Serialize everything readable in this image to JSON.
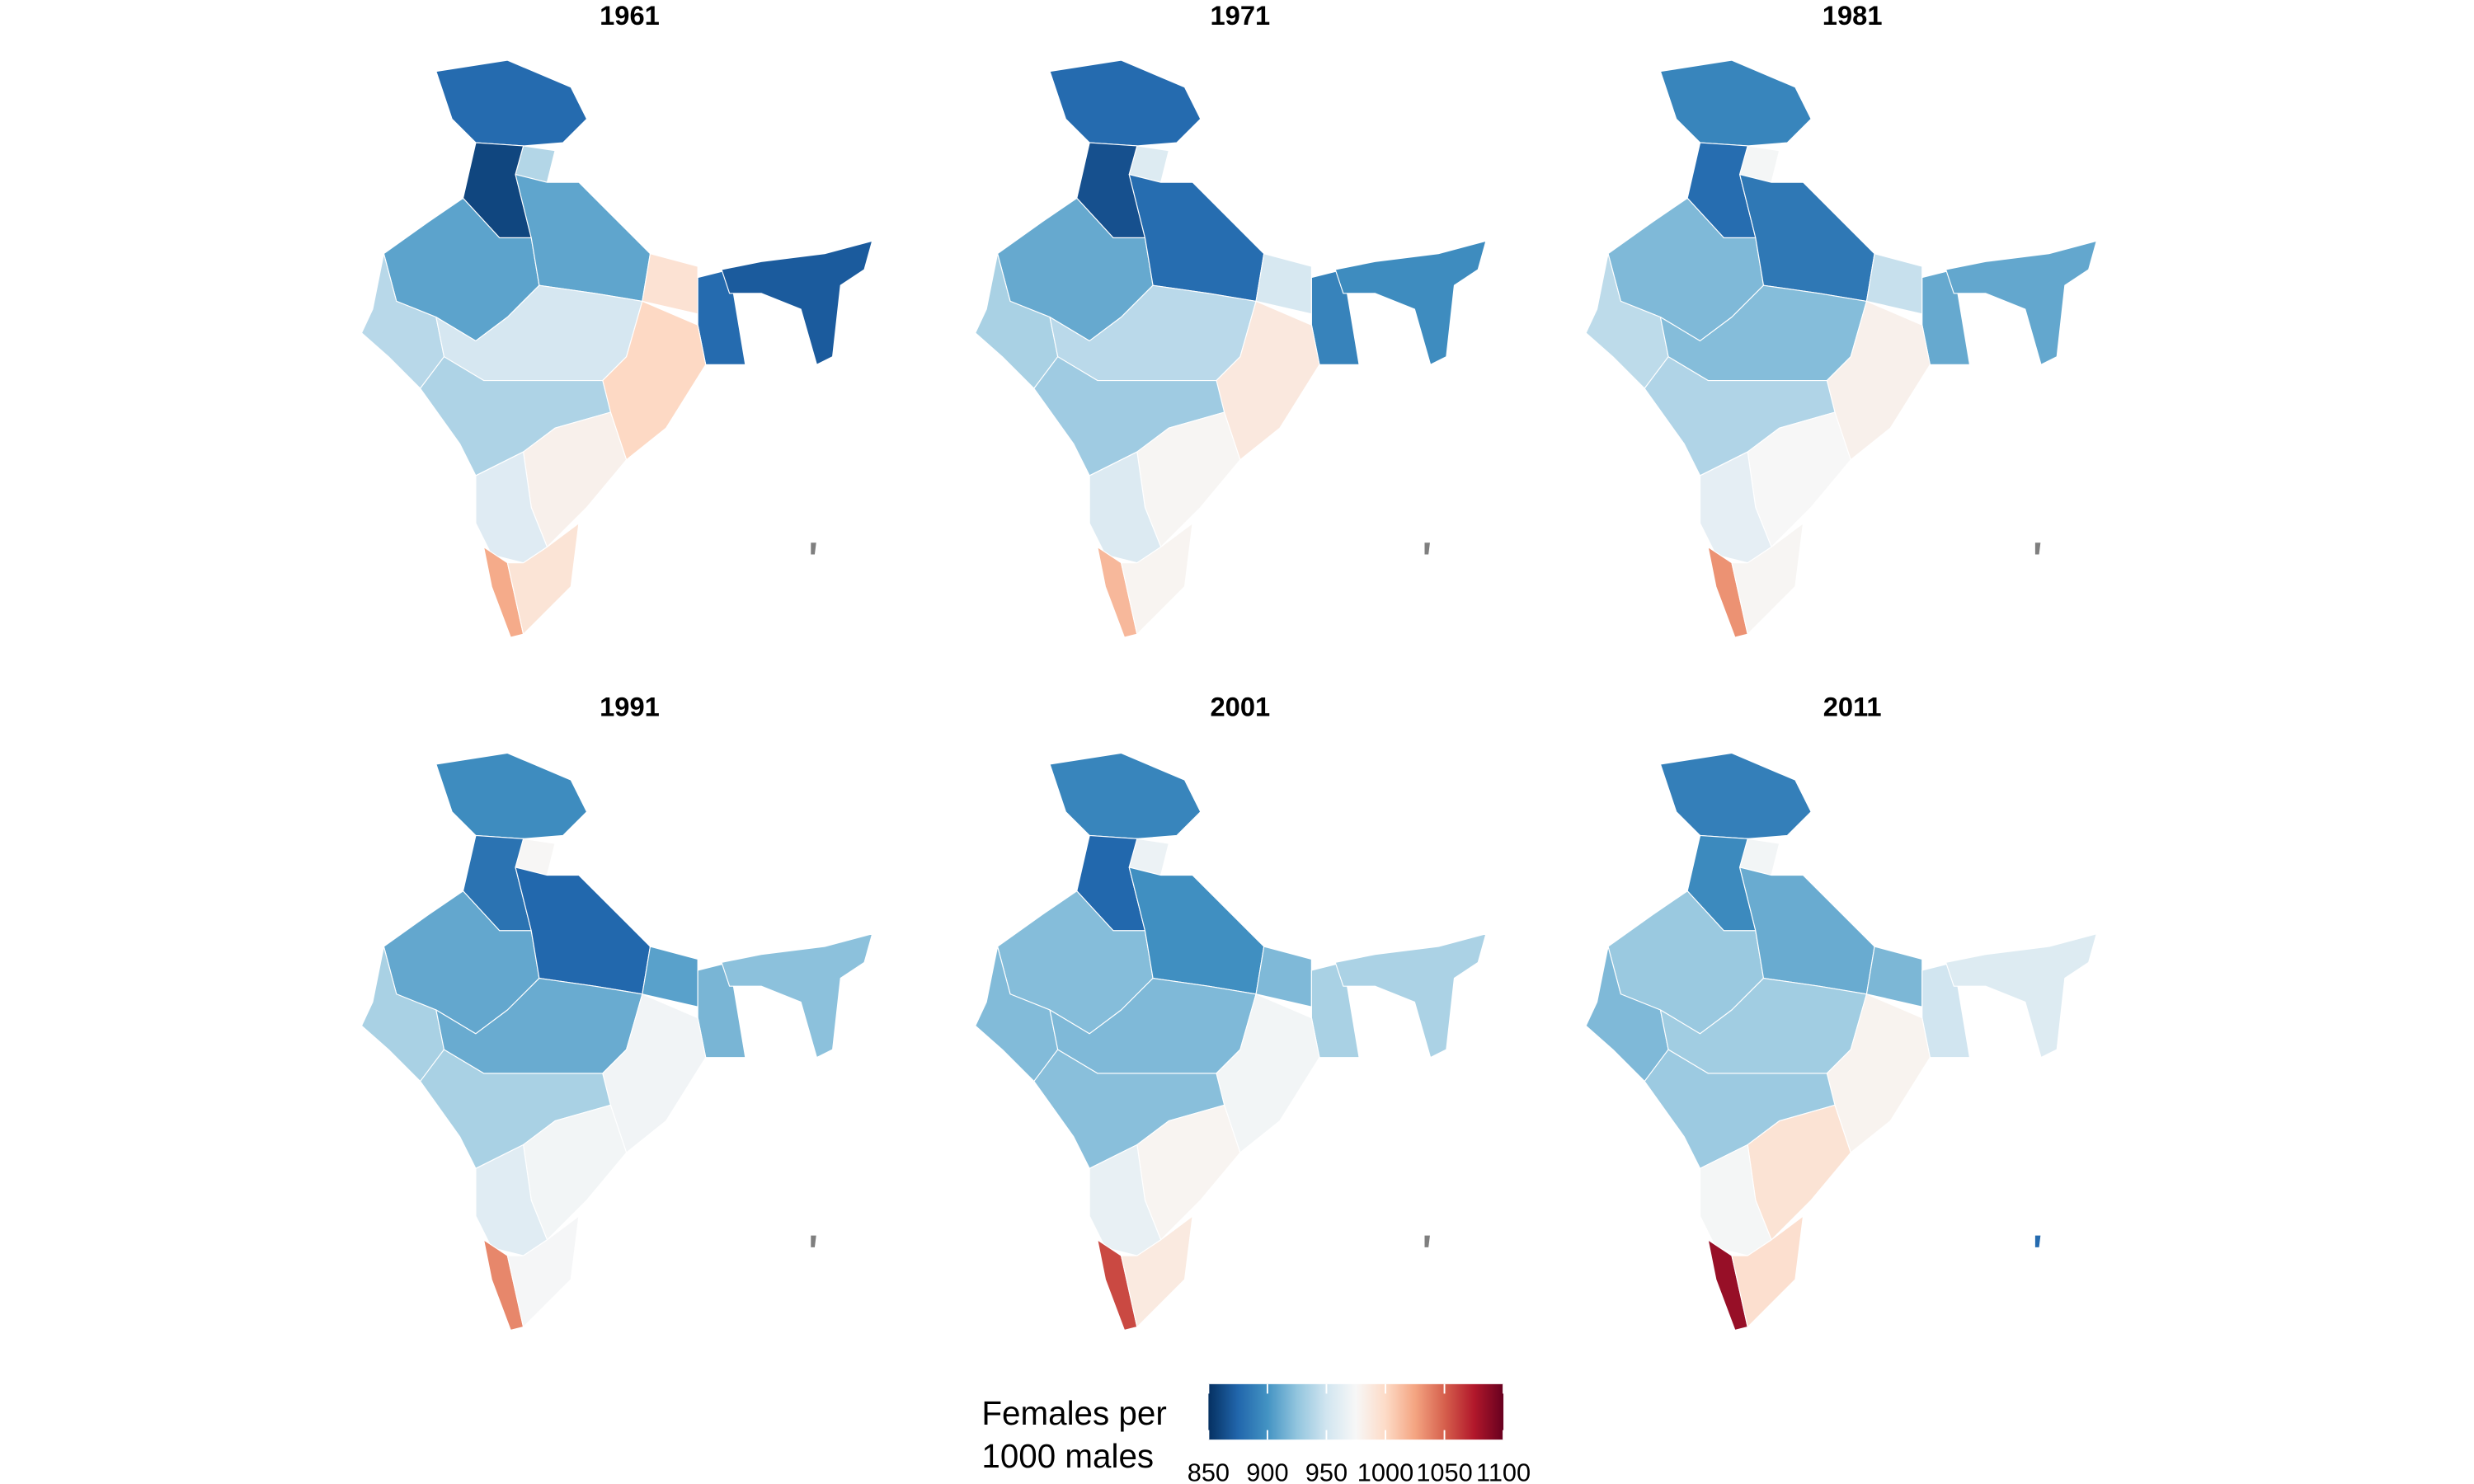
{
  "chart_data": {
    "type": "choropleth",
    "panels": [
      {
        "title": "1961",
        "values": [
          878,
          938,
          860,
          908,
          909,
          994,
          878,
          870,
          940,
          953,
          1001,
          936,
          981,
          959,
          1022,
          992,
          null
        ]
      },
      {
        "title": "1971",
        "values": [
          878,
          958,
          865,
          911,
          879,
          954,
          891,
          896,
          934,
          941,
          988,
          930,
          977,
          957,
          1016,
          978,
          null
        ]
      },
      {
        "title": "1981",
        "values": [
          892,
          973,
          879,
          919,
          885,
          946,
          911,
          910,
          942,
          921,
          981,
          937,
          975,
          963,
          1032,
          977,
          null
        ]
      },
      {
        "title": "1991",
        "values": [
          896,
          976,
          882,
          910,
          876,
          907,
          917,
          923,
          934,
          912,
          971,
          934,
          972,
          960,
          1036,
          974,
          null
        ]
      },
      {
        "title": "2001",
        "values": [
          892,
          968,
          876,
          921,
          898,
          919,
          934,
          935,
          920,
          919,
          972,
          922,
          978,
          965,
          1058,
          987,
          null
        ]
      },
      {
        "title": "2011",
        "values": [
          889,
          972,
          895,
          928,
          912,
          918,
          950,
          958,
          919,
          931,
          979,
          929,
          993,
          973,
          1084,
          996,
          878
        ]
      }
    ],
    "legend_title": [
      "Females per",
      "1000 males"
    ],
    "scale_limits": [
      850,
      1100
    ],
    "scale_ticks": [
      850,
      900,
      950,
      1000,
      1050,
      1100
    ],
    "colors": [
      "#053061",
      "#2166ac",
      "#4393c3",
      "#92c5de",
      "#d1e5f0",
      "#f7f7f7",
      "#fddbc7",
      "#f4a582",
      "#d6604d",
      "#b2182b",
      "#67001f"
    ],
    "na_color": "#7f7f7f"
  }
}
